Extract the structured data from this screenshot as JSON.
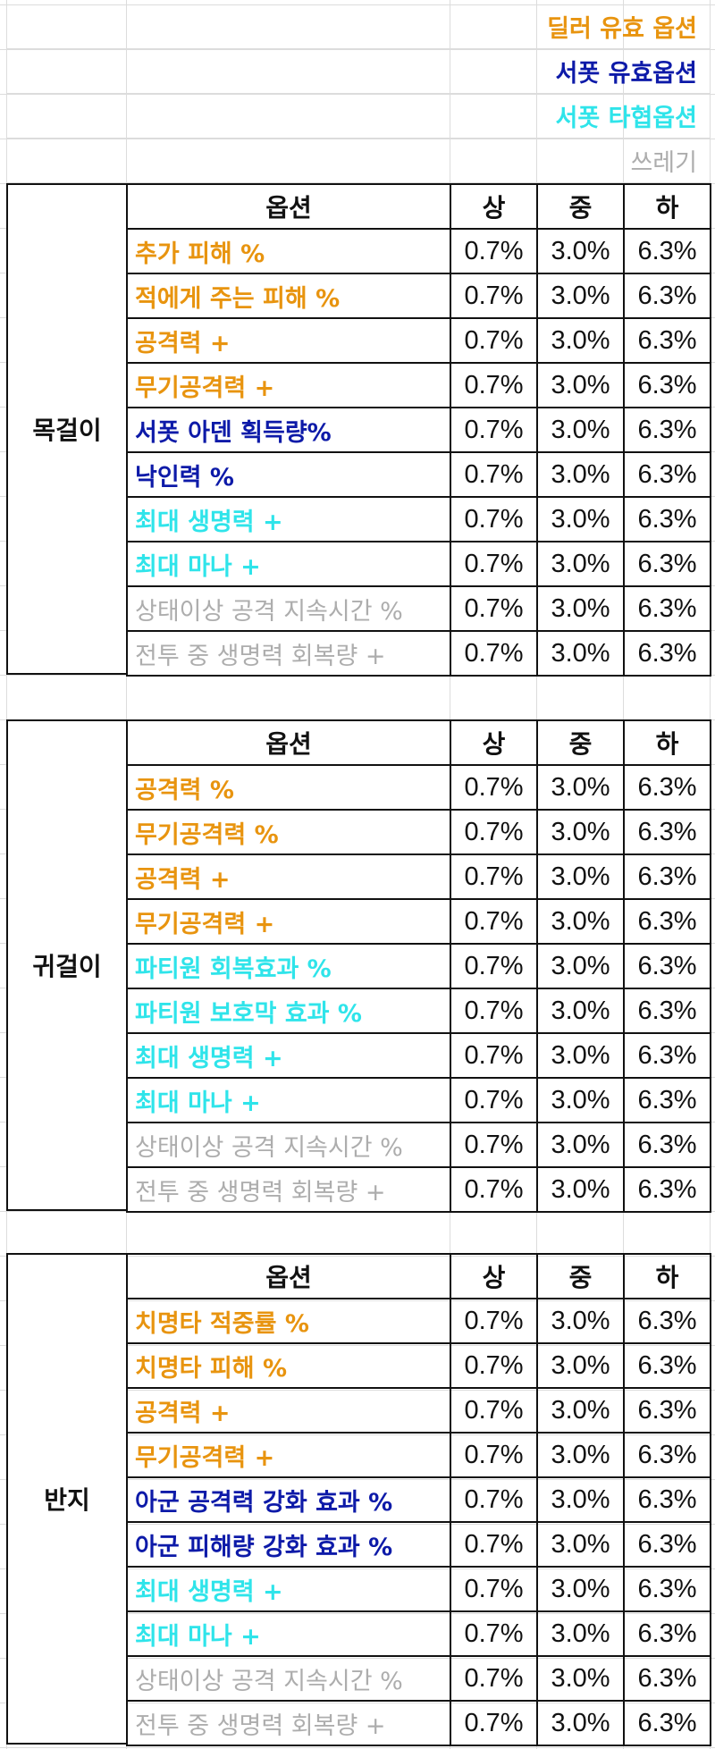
{
  "colors": {
    "dealer": "#e8940f",
    "support": "#0d1aa8",
    "hybrid": "#2fe4ea",
    "junk": "#adadad"
  },
  "legend": [
    {
      "label": "딜러 유효 옵션",
      "class": "dealer"
    },
    {
      "label": "서폿 유효옵션",
      "class": "support"
    },
    {
      "label": "서폿 타협옵션",
      "class": "hybrid"
    },
    {
      "label": "쓰레기",
      "class": "junk"
    }
  ],
  "headers": {
    "option": "옵션",
    "high": "상",
    "mid": "중",
    "low": "하"
  },
  "tables": [
    {
      "category": "목걸이",
      "rows": [
        {
          "option": "추가 피해 %",
          "class": "dealer",
          "high": "0.7%",
          "mid": "3.0%",
          "low": "6.3%"
        },
        {
          "option": "적에게 주는 피해 %",
          "class": "dealer",
          "high": "0.7%",
          "mid": "3.0%",
          "low": "6.3%"
        },
        {
          "option": "공격력 +",
          "class": "dealer",
          "high": "0.7%",
          "mid": "3.0%",
          "low": "6.3%"
        },
        {
          "option": "무기공격력 +",
          "class": "dealer",
          "high": "0.7%",
          "mid": "3.0%",
          "low": "6.3%"
        },
        {
          "option": "서폿 아덴 획득량%",
          "class": "support",
          "high": "0.7%",
          "mid": "3.0%",
          "low": "6.3%"
        },
        {
          "option": "낙인력 %",
          "class": "support",
          "high": "0.7%",
          "mid": "3.0%",
          "low": "6.3%"
        },
        {
          "option": "최대 생명력 +",
          "class": "hybrid",
          "high": "0.7%",
          "mid": "3.0%",
          "low": "6.3%"
        },
        {
          "option": "최대 마나 +",
          "class": "hybrid",
          "high": "0.7%",
          "mid": "3.0%",
          "low": "6.3%"
        },
        {
          "option": "상태이상 공격 지속시간 %",
          "class": "junk",
          "high": "0.7%",
          "mid": "3.0%",
          "low": "6.3%"
        },
        {
          "option": "전투 중 생명력 회복량 +",
          "class": "junk",
          "high": "0.7%",
          "mid": "3.0%",
          "low": "6.3%"
        }
      ]
    },
    {
      "category": "귀걸이",
      "rows": [
        {
          "option": "공격력 %",
          "class": "dealer",
          "high": "0.7%",
          "mid": "3.0%",
          "low": "6.3%"
        },
        {
          "option": "무기공격력 %",
          "class": "dealer",
          "high": "0.7%",
          "mid": "3.0%",
          "low": "6.3%"
        },
        {
          "option": "공격력 +",
          "class": "dealer",
          "high": "0.7%",
          "mid": "3.0%",
          "low": "6.3%"
        },
        {
          "option": "무기공격력 +",
          "class": "dealer",
          "high": "0.7%",
          "mid": "3.0%",
          "low": "6.3%"
        },
        {
          "option": "파티원 회복효과 %",
          "class": "hybrid",
          "high": "0.7%",
          "mid": "3.0%",
          "low": "6.3%"
        },
        {
          "option": "파티원 보호막 효과 %",
          "class": "hybrid",
          "high": "0.7%",
          "mid": "3.0%",
          "low": "6.3%"
        },
        {
          "option": "최대 생명력 +",
          "class": "hybrid",
          "high": "0.7%",
          "mid": "3.0%",
          "low": "6.3%"
        },
        {
          "option": "최대 마나 +",
          "class": "hybrid",
          "high": "0.7%",
          "mid": "3.0%",
          "low": "6.3%"
        },
        {
          "option": "상태이상 공격 지속시간 %",
          "class": "junk",
          "high": "0.7%",
          "mid": "3.0%",
          "low": "6.3%"
        },
        {
          "option": "전투 중 생명력 회복량 +",
          "class": "junk",
          "high": "0.7%",
          "mid": "3.0%",
          "low": "6.3%"
        }
      ]
    },
    {
      "category": "반지",
      "rows": [
        {
          "option": "치명타 적중률 %",
          "class": "dealer",
          "high": "0.7%",
          "mid": "3.0%",
          "low": "6.3%"
        },
        {
          "option": "치명타 피해 %",
          "class": "dealer",
          "high": "0.7%",
          "mid": "3.0%",
          "low": "6.3%"
        },
        {
          "option": "공격력 +",
          "class": "dealer",
          "high": "0.7%",
          "mid": "3.0%",
          "low": "6.3%"
        },
        {
          "option": "무기공격력 +",
          "class": "dealer",
          "high": "0.7%",
          "mid": "3.0%",
          "low": "6.3%"
        },
        {
          "option": "아군 공격력 강화 효과 %",
          "class": "support",
          "high": "0.7%",
          "mid": "3.0%",
          "low": "6.3%"
        },
        {
          "option": "아군 피해량 강화 효과 %",
          "class": "support",
          "high": "0.7%",
          "mid": "3.0%",
          "low": "6.3%"
        },
        {
          "option": "최대 생명력 +",
          "class": "hybrid",
          "high": "0.7%",
          "mid": "3.0%",
          "low": "6.3%"
        },
        {
          "option": "최대 마나 +",
          "class": "hybrid",
          "high": "0.7%",
          "mid": "3.0%",
          "low": "6.3%"
        },
        {
          "option": "상태이상 공격 지속시간 %",
          "class": "junk",
          "high": "0.7%",
          "mid": "3.0%",
          "low": "6.3%"
        },
        {
          "option": "전투 중 생명력 회복량 +",
          "class": "junk",
          "high": "0.7%",
          "mid": "3.0%",
          "low": "6.3%"
        }
      ]
    }
  ]
}
